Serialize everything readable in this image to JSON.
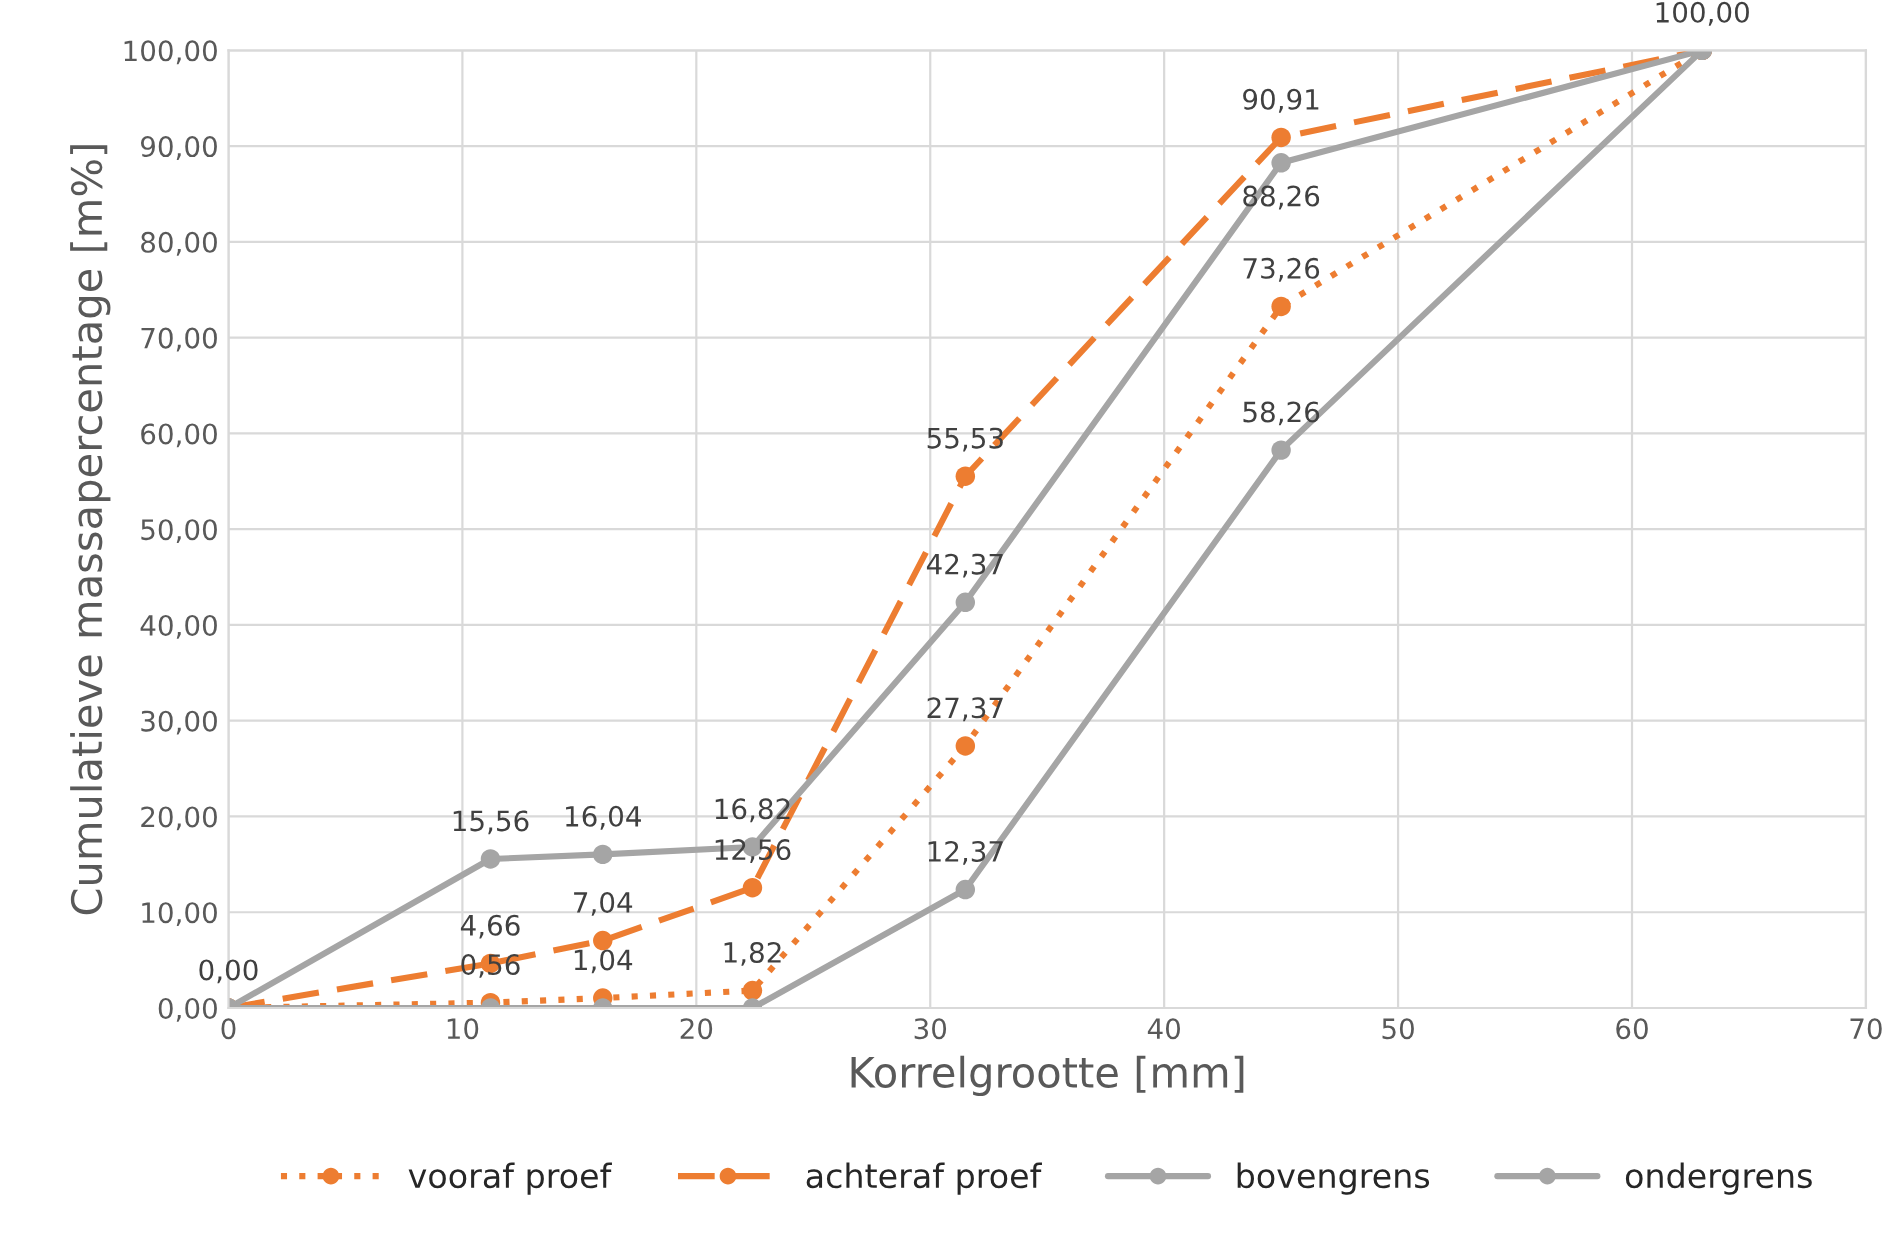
{
  "chart_data": {
    "type": "line",
    "xlabel": "Korrelgrootte [mm]",
    "ylabel": "Cumulatieve massapercentage [m%]",
    "x": [
      0,
      11.2,
      16,
      22.4,
      31.5,
      45,
      63
    ],
    "series": [
      {
        "name": "vooraf proef",
        "color": "#ed7d31",
        "line_style": "dotted",
        "values": [
          0,
          0.56,
          1.04,
          1.82,
          27.37,
          73.26,
          100
        ],
        "value_labels": [
          null,
          "0,56",
          "1,04",
          "1,82",
          "27,37",
          "73,26",
          null
        ]
      },
      {
        "name": "achteraf proef",
        "color": "#ed7d31",
        "line_style": "dashed",
        "values": [
          0,
          4.66,
          7.04,
          12.56,
          55.53,
          90.91,
          100
        ],
        "value_labels": [
          "0,00",
          "4,66",
          "7,04",
          "12,56",
          "55,53",
          "90,91",
          "100,00"
        ]
      },
      {
        "name": "bovengrens",
        "color": "#a5a5a5",
        "line_style": "solid",
        "values": [
          0,
          15.56,
          16.04,
          16.82,
          42.37,
          88.26,
          100
        ],
        "value_labels": [
          null,
          "15,56",
          "16,04",
          "16,82",
          "42,37",
          "88,26",
          null
        ]
      },
      {
        "name": "ondergrens",
        "color": "#a5a5a5",
        "line_style": "solid",
        "values": [
          0,
          0,
          0,
          0,
          12.37,
          58.26,
          100
        ],
        "value_labels": [
          null,
          null,
          null,
          null,
          "12,37",
          "58,26",
          null
        ]
      }
    ],
    "xlim": [
      0,
      70
    ],
    "xticks": [
      0,
      10,
      20,
      30,
      40,
      50,
      60,
      70
    ],
    "ylim": [
      0,
      100
    ],
    "yticks": [
      {
        "value": 0,
        "label": "0,00"
      },
      {
        "value": 10,
        "label": "10,00"
      },
      {
        "value": 20,
        "label": "20,00"
      },
      {
        "value": 30,
        "label": "30,00"
      },
      {
        "value": 40,
        "label": "40,00"
      },
      {
        "value": 50,
        "label": "50,00"
      },
      {
        "value": 60,
        "label": "60,00"
      },
      {
        "value": 70,
        "label": "70,00"
      },
      {
        "value": 80,
        "label": "80,00"
      },
      {
        "value": 90,
        "label": "90,00"
      },
      {
        "value": 100,
        "label": "100,00"
      }
    ],
    "grid": true,
    "legend": "bottom",
    "marker": "circle"
  }
}
